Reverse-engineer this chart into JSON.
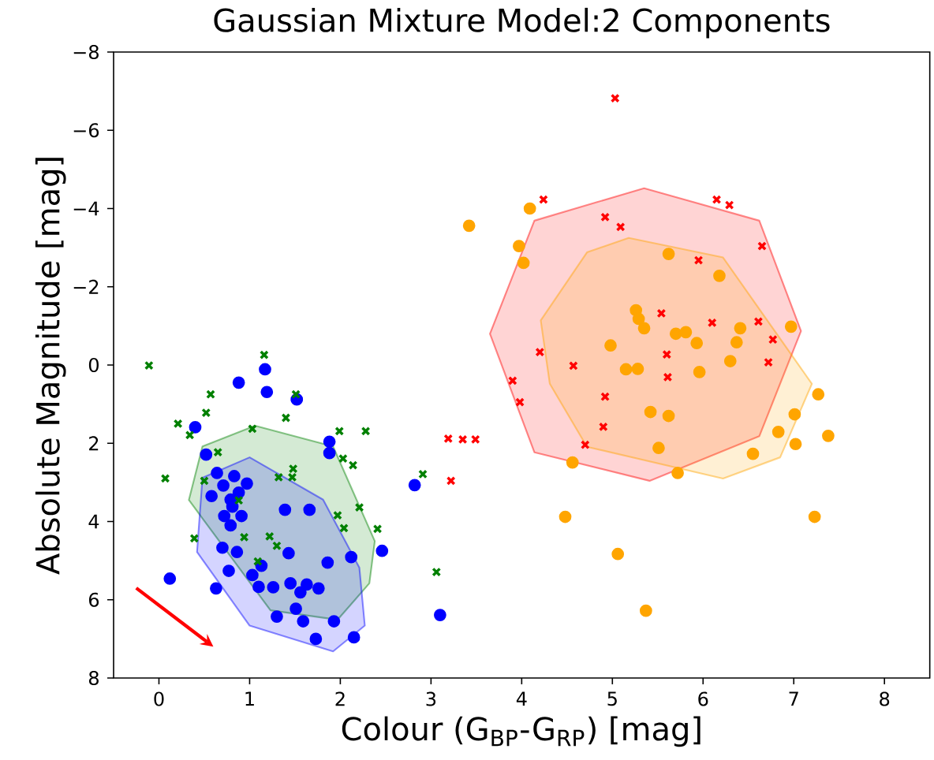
{
  "chart_data": {
    "type": "scatter",
    "title": "Gaussian Mixture Model:2 Components",
    "xlabel": "Colour (G$_{BP}$-G$_{RP}$) [mag]",
    "ylabel": "Absolute Magnitude [mag]",
    "xlim": [
      -0.5,
      8.5
    ],
    "ylim": [
      8,
      -8
    ],
    "xticks": [
      0,
      1,
      2,
      3,
      4,
      5,
      6,
      7,
      8
    ],
    "yticks": [
      {
        "value": -8,
        "label": "−8"
      },
      {
        "value": -6,
        "label": "−6"
      },
      {
        "value": -4,
        "label": "−4"
      },
      {
        "value": -2,
        "label": "−2"
      },
      {
        "value": 0,
        "label": "0"
      },
      {
        "value": 2,
        "label": "2"
      },
      {
        "value": 4,
        "label": "4"
      },
      {
        "value": 6,
        "label": "6"
      },
      {
        "value": 8,
        "label": "8"
      }
    ],
    "series": [
      {
        "type": "area",
        "color": "#008000",
        "x": [
          1.06,
          1.92,
          2.38,
          2.32,
          1.97,
          1.23,
          0.33,
          0.48
        ],
        "values": [
          1.55,
          2.08,
          4.5,
          5.58,
          6.51,
          6.27,
          3.45,
          2.08
        ]
      },
      {
        "type": "area",
        "color": "#0000ff",
        "x": [
          1.0,
          1.81,
          2.21,
          2.27,
          1.92,
          1.0,
          0.42,
          0.48
        ],
        "values": [
          2.36,
          3.44,
          5.18,
          6.66,
          7.32,
          6.66,
          4.78,
          2.88
        ]
      },
      {
        "type": "area",
        "color": "#ff0000",
        "x": [
          3.65,
          4.14,
          5.35,
          6.62,
          7.08,
          6.62,
          5.41,
          4.14
        ],
        "values": [
          -0.8,
          -3.69,
          -4.52,
          -3.69,
          -0.87,
          1.82,
          2.96,
          2.23
        ]
      },
      {
        "type": "area",
        "color": "#ffa500",
        "x": [
          4.21,
          4.72,
          5.18,
          6.22,
          7.2,
          6.85,
          6.22,
          4.72,
          4.31
        ],
        "values": [
          -1.14,
          -2.88,
          -3.25,
          -2.75,
          0.48,
          2.36,
          2.9,
          2.09,
          0.48
        ]
      },
      {
        "type": "scatter",
        "marker": "cross",
        "color": "#008000",
        "x": [
          -0.11,
          1.16,
          0.57,
          0.52,
          0.21,
          0.34,
          1.51,
          1.4,
          1.03,
          1.99,
          2.28,
          0.65,
          2.03,
          2.14,
          0.07,
          0.5,
          1.48,
          1.32,
          1.47,
          2.91,
          0.88,
          2.21,
          1.97,
          2.04,
          2.41,
          0.39,
          0.94,
          1.22,
          1.3,
          1.09,
          3.06
        ],
        "values": [
          0.01,
          -0.26,
          0.75,
          1.22,
          1.5,
          1.79,
          0.75,
          1.35,
          1.63,
          1.69,
          1.69,
          2.23,
          2.39,
          2.56,
          2.9,
          2.96,
          2.65,
          2.87,
          2.87,
          2.79,
          3.46,
          3.64,
          3.84,
          4.17,
          4.19,
          4.43,
          4.4,
          4.38,
          4.62,
          5.02,
          5.29
        ]
      },
      {
        "type": "scatter",
        "marker": "cross",
        "color": "#ff0000",
        "x": [
          5.03,
          4.24,
          4.92,
          5.09,
          4.2,
          4.57,
          3.9,
          3.98,
          4.92,
          4.9,
          4.7,
          3.19,
          3.35,
          3.49,
          3.22,
          6.15,
          6.29,
          6.65,
          5.95,
          5.54,
          6.1,
          6.61,
          6.77,
          5.6,
          6.72,
          5.61
        ],
        "values": [
          -6.82,
          -4.23,
          -3.78,
          -3.53,
          -0.33,
          0.02,
          0.4,
          0.95,
          0.81,
          1.58,
          2.04,
          1.88,
          1.9,
          1.9,
          2.96,
          -4.23,
          -4.09,
          -3.04,
          -2.68,
          -1.32,
          -1.08,
          -1.11,
          -0.65,
          -0.27,
          -0.07,
          0.31
        ]
      },
      {
        "type": "scatter",
        "marker": "circle",
        "color": "#0000ff",
        "x": [
          1.17,
          0.88,
          1.19,
          1.52,
          0.4,
          1.88,
          1.88,
          0.52,
          2.82,
          0.64,
          0.83,
          0.97,
          0.71,
          0.88,
          0.58,
          0.79,
          0.81,
          0.72,
          0.91,
          0.79,
          1.39,
          1.66,
          0.7,
          0.86,
          1.43,
          2.46,
          2.12,
          1.86,
          1.13,
          1.03,
          0.77,
          0.12,
          0.63,
          1.1,
          1.26,
          1.45,
          1.63,
          1.56,
          1.76,
          1.51,
          1.3,
          1.59,
          1.93,
          1.73,
          2.15,
          3.1
        ],
        "values": [
          0.11,
          0.45,
          0.69,
          0.88,
          1.59,
          1.96,
          2.25,
          2.29,
          3.07,
          2.76,
          2.84,
          3.03,
          3.08,
          3.26,
          3.35,
          3.44,
          3.62,
          3.86,
          3.86,
          4.1,
          3.7,
          3.7,
          4.67,
          4.78,
          4.81,
          4.75,
          4.91,
          5.05,
          5.13,
          5.37,
          5.26,
          5.46,
          5.71,
          5.67,
          5.68,
          5.58,
          5.61,
          5.81,
          5.71,
          6.23,
          6.43,
          6.55,
          6.55,
          7.0,
          6.96,
          6.39
        ]
      },
      {
        "type": "scatter",
        "marker": "circle",
        "color": "#ffa500",
        "x": [
          4.09,
          3.42,
          3.97,
          4.02,
          5.26,
          5.29,
          5.35,
          4.98,
          5.15,
          5.28,
          5.42,
          5.51,
          4.56,
          4.48,
          5.06,
          5.37,
          5.62,
          6.18,
          5.7,
          5.81,
          5.93,
          6.41,
          6.37,
          6.97,
          6.3,
          5.96,
          5.62,
          5.72,
          6.55,
          6.83,
          7.01,
          7.02,
          7.27,
          7.38,
          7.23
        ],
        "values": [
          -4.0,
          -3.56,
          -3.04,
          -2.61,
          -1.4,
          -1.18,
          -0.94,
          -0.5,
          0.11,
          0.1,
          1.2,
          2.12,
          2.49,
          3.88,
          4.83,
          6.28,
          -2.84,
          -2.28,
          -0.8,
          -0.84,
          -0.56,
          -0.94,
          -0.58,
          -0.98,
          -0.1,
          0.18,
          1.3,
          2.76,
          2.27,
          1.71,
          1.26,
          2.02,
          0.75,
          1.81,
          3.88
        ]
      }
    ]
  }
}
